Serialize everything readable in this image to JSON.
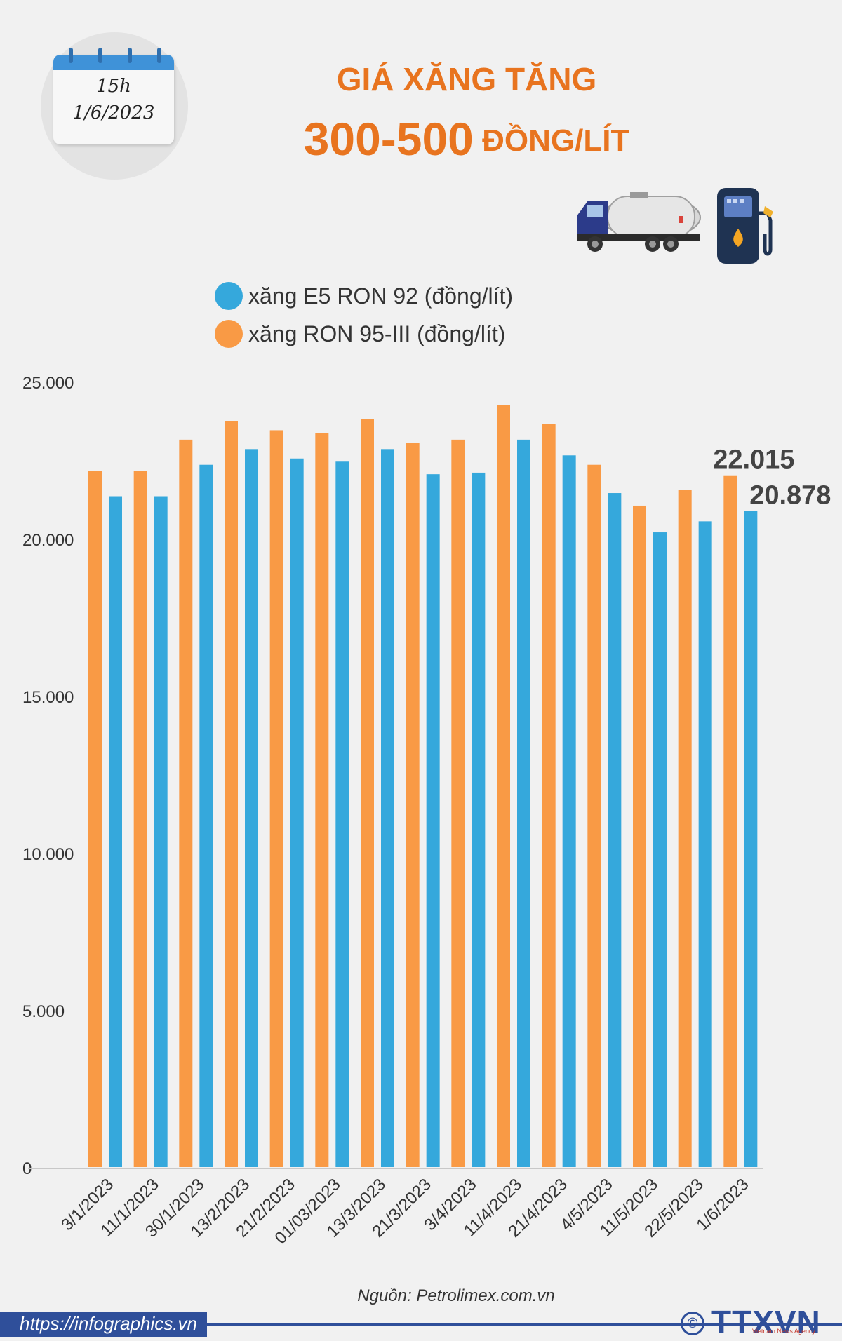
{
  "calendar": {
    "time": "15h",
    "date": "1/6/2023"
  },
  "header": {
    "title_line1": "GIÁ XĂNG TĂNG",
    "title_amount": "300-500",
    "title_unit": "ĐỒNG/LÍT"
  },
  "icons": {
    "truck": "tanker-truck-icon",
    "pump": "fuel-pump-icon",
    "calendar": "calendar-icon"
  },
  "colors": {
    "e5": "#35a8dc",
    "ron95": "#f99a45",
    "title": "#e8741f",
    "brand": "#2f4f9a"
  },
  "footer": {
    "source": "Nguồn: Petrolimex.com.vn",
    "url": "https://infographics.vn",
    "logo": "TTXVN",
    "logo_sub": "Vietnam News Agency",
    "copyright": "©"
  },
  "chart_data": {
    "type": "bar",
    "categories": [
      "3/1/2023",
      "11/1/2023",
      "30/1/2023",
      "13/2/2023",
      "21/2/2023",
      "01/03/2023",
      "13/3/2023",
      "21/3/2023",
      "3/4/2023",
      "11/4/2023",
      "21/4/2023",
      "4/5/2023",
      "11/5/2023",
      "22/5/2023",
      "1/6/2023"
    ],
    "series": [
      {
        "name": "xăng RON 95-III (đồng/lít)",
        "color": "#f99a45",
        "values": [
          22150,
          22150,
          23150,
          23750,
          23450,
          23350,
          23800,
          23050,
          23150,
          24250,
          23650,
          22350,
          21050,
          21550,
          22015
        ]
      },
      {
        "name": "xăng E5 RON 92 (đồng/lít)",
        "color": "#35a8dc",
        "values": [
          21350,
          21350,
          22350,
          22850,
          22550,
          22450,
          22850,
          22050,
          22100,
          23150,
          22650,
          21450,
          20200,
          20550,
          20878
        ]
      }
    ],
    "legend_order": [
      "xăng E5 RON 92 (đồng/lít)",
      "xăng RON 95-III (đồng/lít)"
    ],
    "value_labels": [
      "22.015",
      "20.878"
    ],
    "yticks": [
      "0",
      "5.000",
      "10.000",
      "15.000",
      "20.000",
      "25.000"
    ],
    "ylim": [
      0,
      25000
    ],
    "grid": false,
    "legend_position": "top-left"
  }
}
